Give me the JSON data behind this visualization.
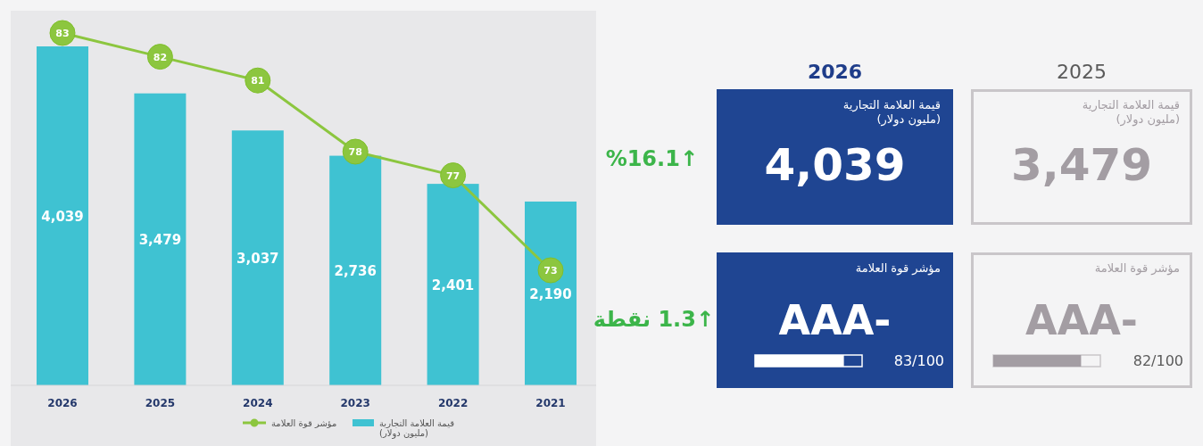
{
  "chart_data": [
    {
      "type": "bar",
      "categories": [
        "2026",
        "2025",
        "2024",
        "2023",
        "2022",
        "2021"
      ],
      "series": [
        {
          "name": "قيمة العلامة التجارية\n(مليون دولار)",
          "color": "#3fc2d2",
          "values": [
            4039,
            3479,
            3037,
            2736,
            2401,
            2190
          ],
          "value_labels": [
            "4,039",
            "3,479",
            "3,037",
            "2,736",
            "2,401",
            "2,190"
          ]
        },
        {
          "name": "مؤشر قوة العلامة",
          "type": "line",
          "axis": "y2",
          "color": "#8cc63f",
          "values": [
            83,
            82,
            81,
            78,
            77,
            73
          ]
        }
      ],
      "data_labels": true,
      "legend": "bottom",
      "marker": "circle",
      "tick_labels": "x"
    },
    {
      "type": "other",
      "categories": [
        "2026",
        "2025"
      ],
      "values": [
        83,
        82
      ],
      "value_labels": [
        "83/100",
        "82/100"
      ],
      "annotations": [
        "قيمة العلامة التجارية\n(مليون دولار)",
        "4,039",
        "قيمة العلامة التجارية\n(مليون دولار)",
        "3,479",
        "%16.1↑",
        "مؤشر قوة العلامة",
        "AAA-",
        "مؤشر قوة العلامة",
        "AAA-",
        "↑1.3 نقطة"
      ]
    }
  ]
}
